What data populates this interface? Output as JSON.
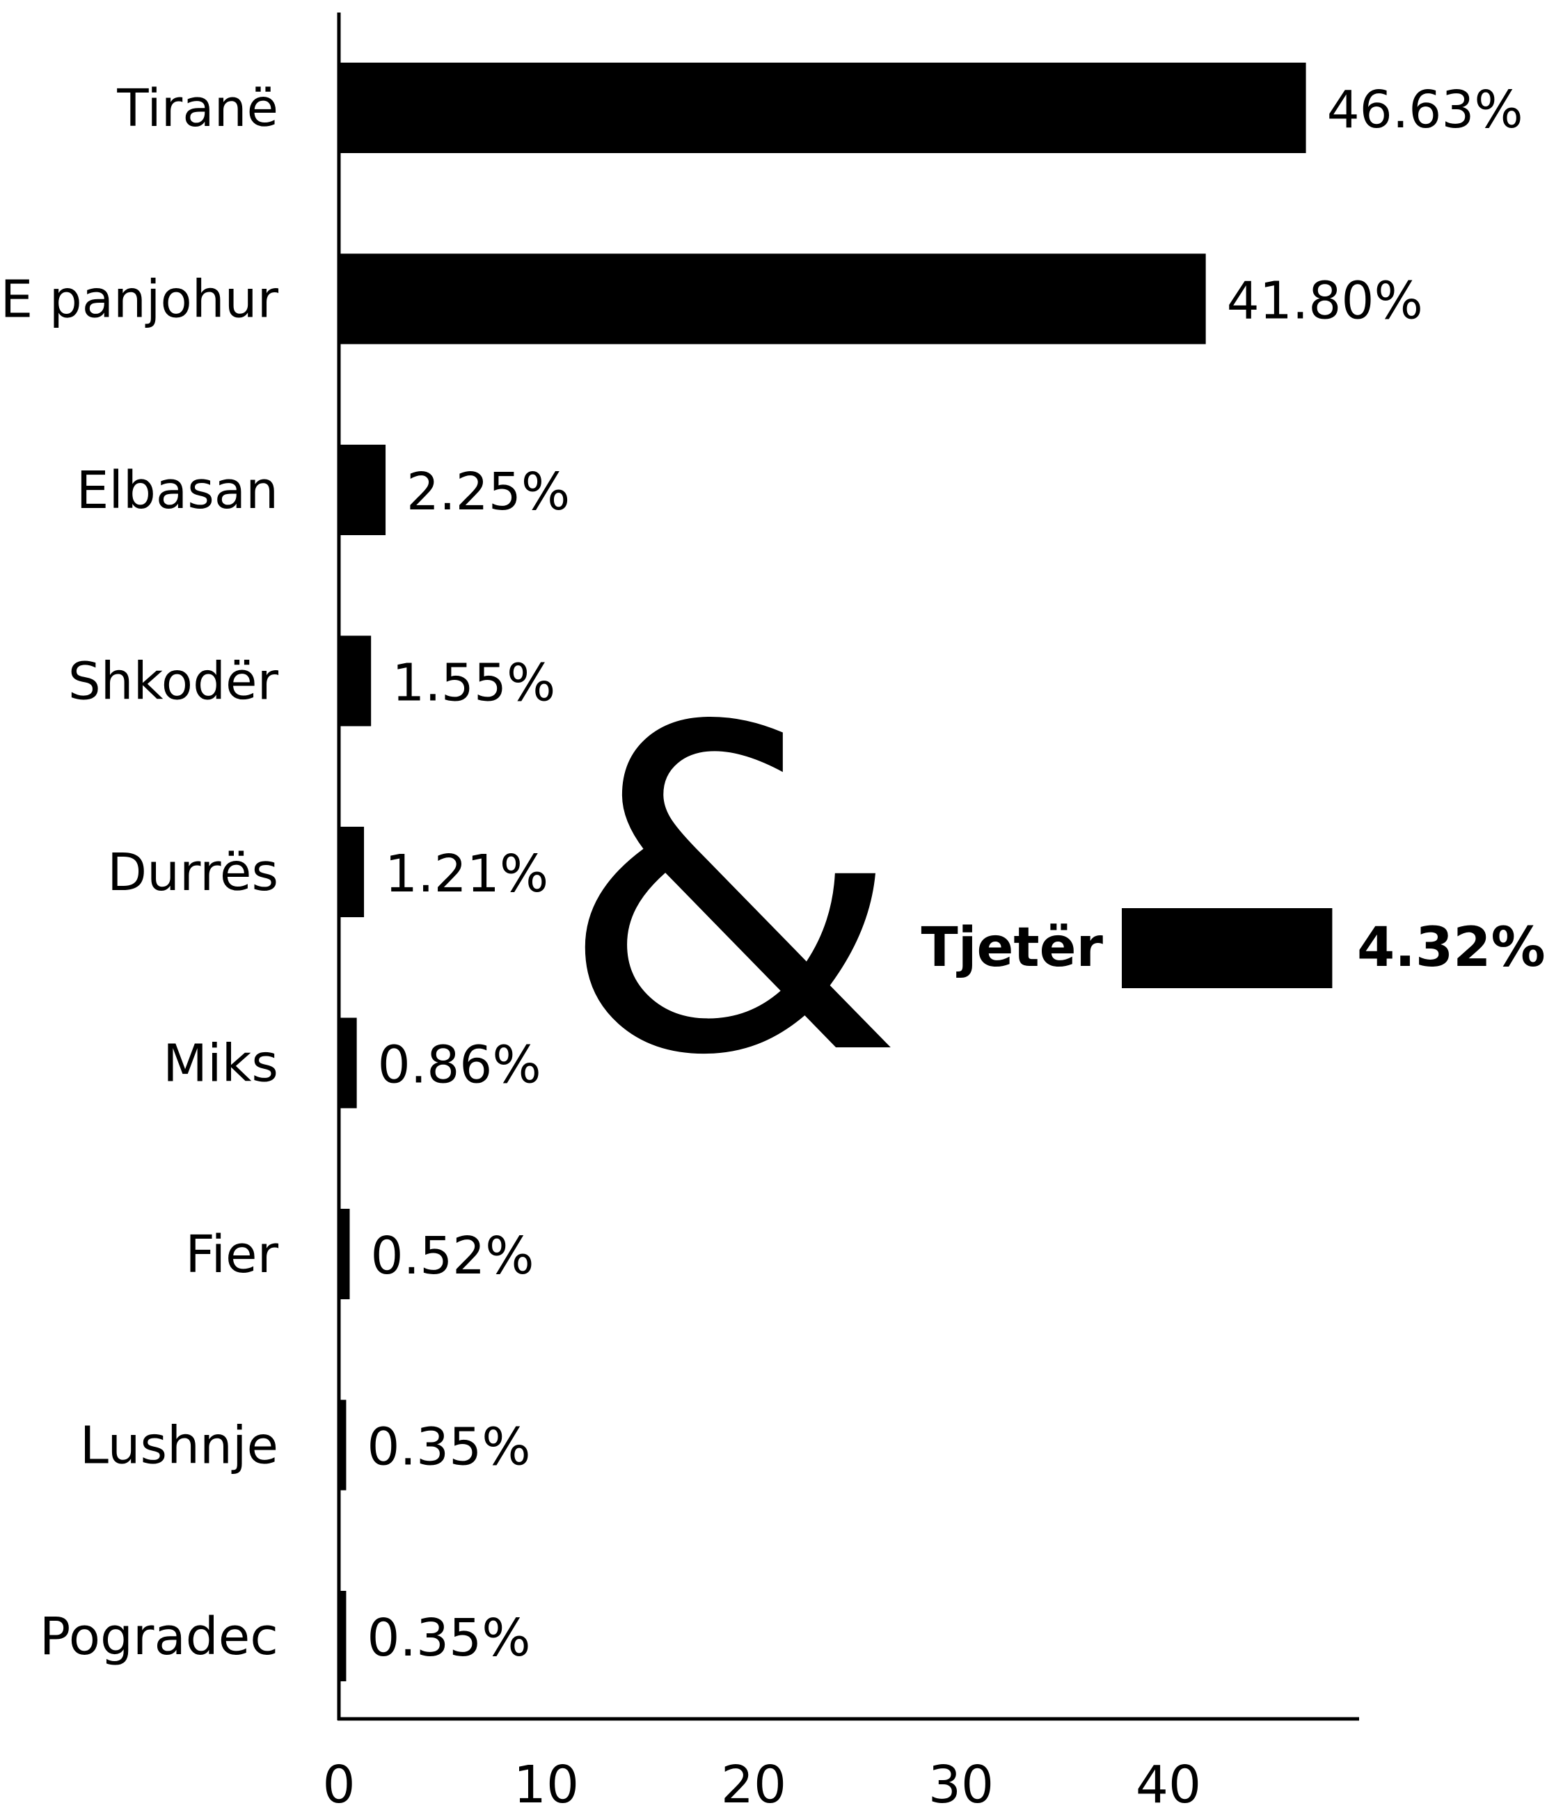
{
  "chart_data": {
    "type": "bar",
    "orientation": "horizontal",
    "categories": [
      "Tiranë",
      "E panjohur",
      "Elbasan",
      "Shkodër",
      "Durrës",
      "Miks",
      "Fier",
      "Lushnje",
      "Pogradec"
    ],
    "values": [
      46.63,
      41.8,
      2.25,
      1.55,
      1.21,
      0.86,
      0.52,
      0.35,
      0.35
    ],
    "value_labels": [
      "46.63%",
      "41.80%",
      "2.25%",
      "1.55%",
      "1.21%",
      "0.86%",
      "0.52%",
      "0.35%",
      "0.35%"
    ],
    "x_ticks": [
      "0",
      "10",
      "20",
      "30",
      "40"
    ],
    "xlim": [
      0,
      49
    ],
    "grid": false,
    "bar_color": "#000000",
    "annotation": {
      "symbol": "&",
      "label": "Tjetër",
      "value": 4.32,
      "value_label": "4.32%"
    }
  }
}
